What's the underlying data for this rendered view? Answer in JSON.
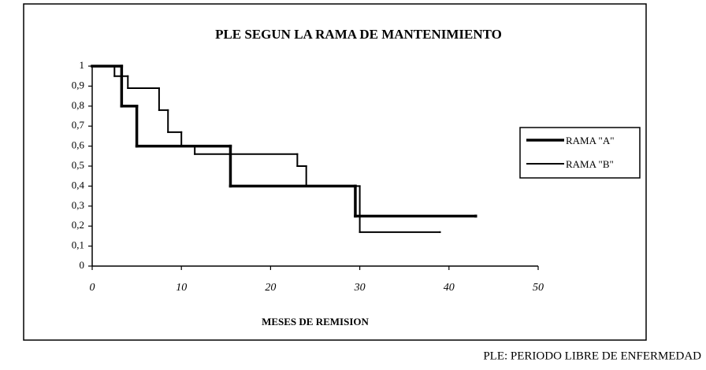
{
  "chart_data": {
    "type": "step",
    "title": "PLE SEGUN LA RAMA DE MANTENIMIENTO",
    "xlabel": "MESES DE REMISION",
    "footnote": "PLE: PERIODO LIBRE DE ENFERMEDAD",
    "xlim": [
      0,
      50
    ],
    "xticks": [
      0,
      10,
      20,
      30,
      40,
      50
    ],
    "ylim": [
      0,
      1
    ],
    "yticks": [
      0,
      {
        "value": 0.1,
        "label": "0,1"
      },
      {
        "value": 0.2,
        "label": "0,2"
      },
      {
        "value": 0.3,
        "label": "0,3"
      },
      {
        "value": 0.4,
        "label": "0,4"
      },
      {
        "value": 0.5,
        "label": "0,5"
      },
      {
        "value": 0.6,
        "label": "0,6"
      },
      {
        "value": 0.7,
        "label": "0,7"
      },
      {
        "value": 0.8,
        "label": "0,8"
      },
      {
        "value": 0.9,
        "label": "0,9"
      },
      1
    ],
    "legend": "right",
    "series": [
      {
        "name": "RAMA \"A\"",
        "color": "#000000",
        "line_width": 3.5,
        "x": [
          0,
          3.3,
          5,
          15.5,
          29.5,
          43
        ],
        "values": [
          1,
          0.8,
          0.6,
          0.4,
          0.25,
          0.25
        ]
      },
      {
        "name": "RAMA \"B\"",
        "color": "#000000",
        "line_width": 2,
        "x": [
          0,
          2.5,
          4,
          7.5,
          8.5,
          10,
          11.5,
          23,
          24,
          30,
          39
        ],
        "values": [
          1,
          0.95,
          0.89,
          0.78,
          0.67,
          0.6,
          0.56,
          0.5,
          0.4,
          0.17,
          0.17
        ]
      }
    ]
  }
}
